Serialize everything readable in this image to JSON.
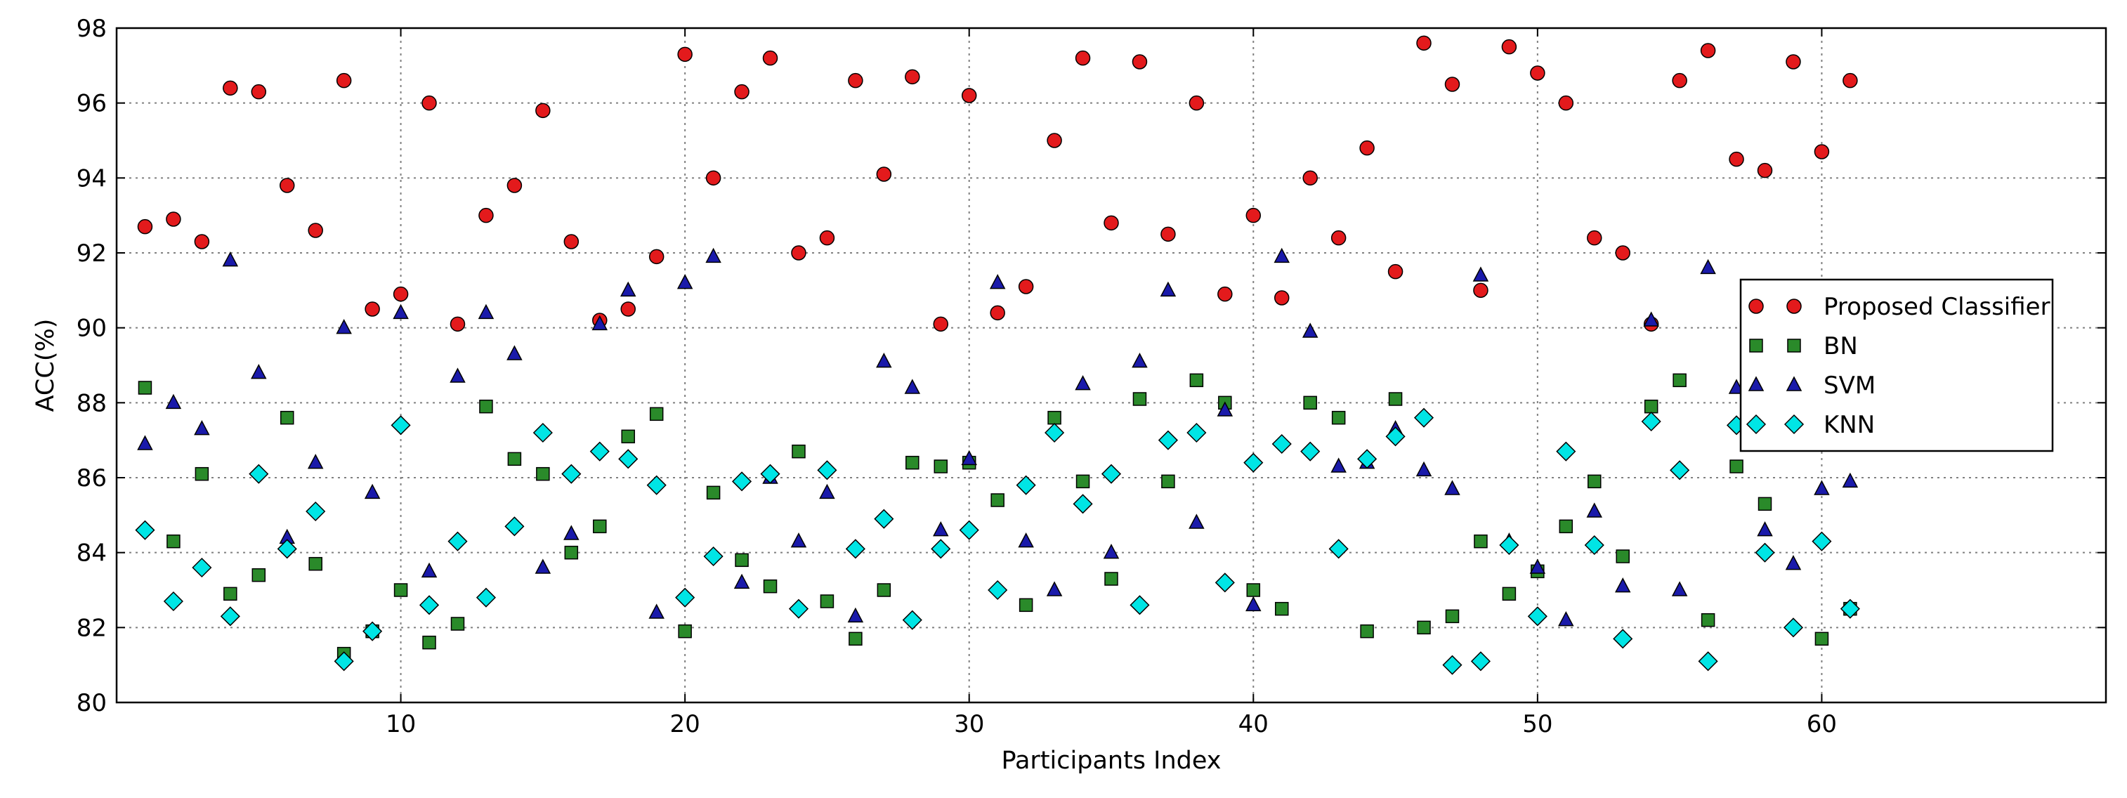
{
  "chart_data": {
    "type": "scatter",
    "title": "",
    "xlabel": "Participants Index",
    "ylabel": "ACC(%)",
    "xlim": [
      0,
      70
    ],
    "ylim": [
      80,
      98
    ],
    "xticks": [
      10,
      20,
      30,
      40,
      50,
      60
    ],
    "yticks": [
      80,
      82,
      84,
      86,
      88,
      90,
      92,
      94,
      96,
      98
    ],
    "grid": true,
    "legend_position": "right",
    "series": [
      {
        "name": "Proposed Classifier",
        "marker": "circle",
        "color": "#e31a1c",
        "x": [
          1,
          2,
          3,
          4,
          5,
          6,
          7,
          8,
          9,
          10,
          11,
          12,
          13,
          14,
          15,
          16,
          17,
          18,
          19,
          20,
          21,
          22,
          23,
          24,
          25,
          26,
          27,
          28,
          29,
          30,
          31,
          32,
          33,
          34,
          35,
          36,
          37,
          38,
          39,
          40,
          41,
          42,
          43,
          44,
          45,
          46,
          47,
          48,
          49,
          50,
          51,
          52,
          53,
          54,
          55,
          56,
          57,
          58,
          59,
          60,
          61
        ],
        "y": [
          92.7,
          92.9,
          92.3,
          96.4,
          96.3,
          93.8,
          92.6,
          96.6,
          90.5,
          90.9,
          96.0,
          90.1,
          93.0,
          93.8,
          95.8,
          92.3,
          90.2,
          90.5,
          91.9,
          97.3,
          94.0,
          96.3,
          97.2,
          92.0,
          92.4,
          96.6,
          94.1,
          96.7,
          90.1,
          96.2,
          90.4,
          91.1,
          95.0,
          97.2,
          92.8,
          97.1,
          92.5,
          96.0,
          90.9,
          93.0,
          90.8,
          94.0,
          92.4,
          94.8,
          91.5,
          97.6,
          96.5,
          91.0,
          97.5,
          96.8,
          96.0,
          92.4,
          92.0,
          90.1,
          96.6,
          97.4,
          94.5,
          94.2,
          97.1,
          94.7,
          96.6
        ]
      },
      {
        "name": "BN",
        "marker": "square",
        "color": "#2a8a2a",
        "x": [
          1,
          2,
          3,
          4,
          5,
          6,
          7,
          8,
          9,
          10,
          11,
          12,
          13,
          14,
          15,
          16,
          17,
          18,
          19,
          20,
          21,
          22,
          23,
          24,
          25,
          26,
          27,
          28,
          29,
          30,
          31,
          32,
          33,
          34,
          35,
          36,
          37,
          38,
          39,
          40,
          41,
          42,
          43,
          44,
          45,
          46,
          47,
          48,
          49,
          50,
          51,
          52,
          53,
          54,
          55,
          56,
          57,
          58,
          59,
          60,
          61
        ],
        "y": [
          88.4,
          84.3,
          86.1,
          82.9,
          83.4,
          87.6,
          83.7,
          81.3,
          81.9,
          83.0,
          81.6,
          82.1,
          87.9,
          86.5,
          86.1,
          84.0,
          84.7,
          87.1,
          87.7,
          81.9,
          85.6,
          83.8,
          83.1,
          86.7,
          82.7,
          81.7,
          83.0,
          86.4,
          86.3,
          86.4,
          85.4,
          82.6,
          87.6,
          85.9,
          83.3,
          88.1,
          85.9,
          88.6,
          88.0,
          83.0,
          82.5,
          88.0,
          87.6,
          81.9,
          88.1,
          82.0,
          82.3,
          84.3,
          82.9,
          83.5,
          84.7,
          85.9,
          83.9,
          87.9,
          88.6,
          82.2,
          86.3,
          85.3,
          87.4,
          81.7,
          82.5
        ]
      },
      {
        "name": "SVM",
        "marker": "triangle",
        "color": "#1a1aaa",
        "x": [
          1,
          2,
          3,
          4,
          5,
          6,
          7,
          8,
          9,
          10,
          11,
          12,
          13,
          14,
          15,
          16,
          17,
          18,
          19,
          20,
          21,
          22,
          23,
          24,
          25,
          26,
          27,
          28,
          29,
          30,
          31,
          32,
          33,
          34,
          35,
          36,
          37,
          38,
          39,
          40,
          41,
          42,
          43,
          44,
          45,
          46,
          47,
          48,
          49,
          50,
          51,
          52,
          53,
          54,
          55,
          56,
          57,
          58,
          59,
          60,
          61
        ],
        "y": [
          86.9,
          88.0,
          87.3,
          91.8,
          88.8,
          84.4,
          86.4,
          90.0,
          85.6,
          90.4,
          83.5,
          88.7,
          90.4,
          89.3,
          83.6,
          84.5,
          90.1,
          91.0,
          82.4,
          91.2,
          91.9,
          83.2,
          86.0,
          84.3,
          85.6,
          82.3,
          89.1,
          88.4,
          84.6,
          86.5,
          91.2,
          84.3,
          83.0,
          88.5,
          84.0,
          89.1,
          91.0,
          84.8,
          87.8,
          82.6,
          91.9,
          89.9,
          86.3,
          86.4,
          87.3,
          86.2,
          85.7,
          91.4,
          84.3,
          83.6,
          82.2,
          85.1,
          83.1,
          90.2,
          83.0,
          91.6,
          88.4,
          84.6,
          83.7,
          85.7,
          85.9
        ]
      },
      {
        "name": "KNN",
        "marker": "diamond",
        "color": "#00e5e5",
        "x": [
          1,
          2,
          3,
          4,
          5,
          6,
          7,
          8,
          9,
          10,
          11,
          12,
          13,
          14,
          15,
          16,
          17,
          18,
          19,
          20,
          21,
          22,
          23,
          24,
          25,
          26,
          27,
          28,
          29,
          30,
          31,
          32,
          33,
          34,
          35,
          36,
          37,
          38,
          39,
          40,
          41,
          42,
          43,
          44,
          45,
          46,
          47,
          48,
          49,
          50,
          51,
          52,
          53,
          54,
          55,
          56,
          57,
          58,
          59,
          60,
          61
        ],
        "y": [
          84.6,
          82.7,
          83.6,
          82.3,
          86.1,
          84.1,
          85.1,
          81.1,
          81.9,
          87.4,
          82.6,
          84.3,
          82.8,
          84.7,
          87.2,
          86.1,
          86.7,
          86.5,
          85.8,
          82.8,
          83.9,
          85.9,
          86.1,
          82.5,
          86.2,
          84.1,
          84.9,
          82.2,
          84.1,
          84.6,
          83.0,
          85.8,
          87.2,
          85.3,
          86.1,
          82.6,
          87.0,
          87.2,
          83.2,
          86.4,
          86.9,
          86.7,
          84.1,
          86.5,
          87.1,
          87.6,
          81.0,
          81.1,
          84.2,
          82.3,
          86.7,
          84.2,
          81.7,
          87.5,
          86.2,
          81.1,
          87.4,
          84.0,
          82.0,
          84.3,
          82.5
        ]
      }
    ]
  }
}
